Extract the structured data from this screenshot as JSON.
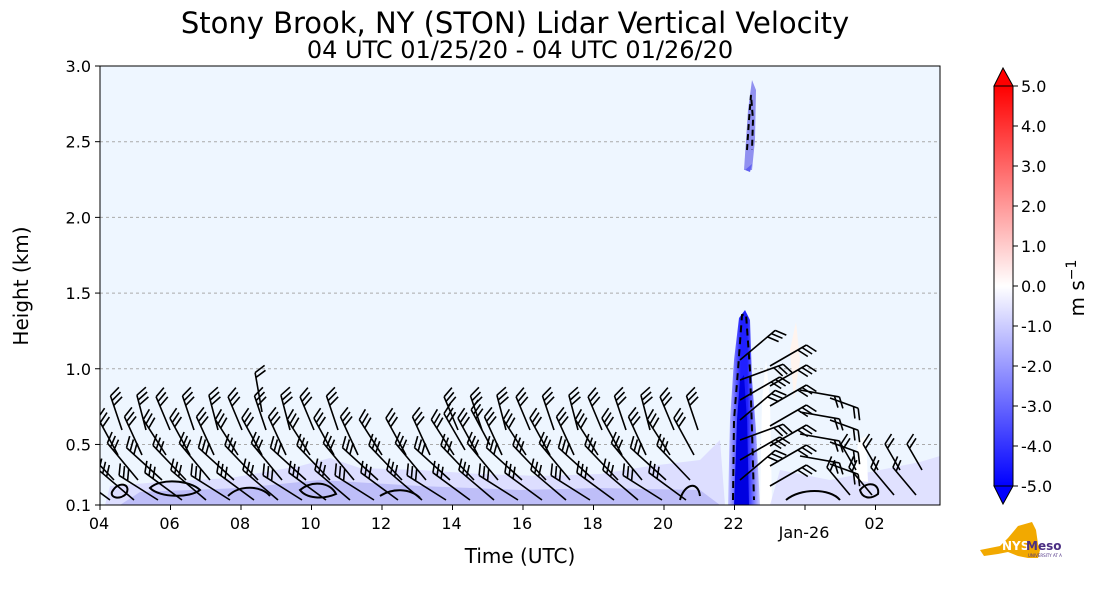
{
  "chart_data": {
    "type": "heatmap",
    "title": "Stony Brook, NY (STON) Lidar Vertical Velocity",
    "subtitle": "04 UTC 01/25/20 - 04 UTC 01/26/20",
    "xlabel": "Time (UTC)",
    "ylabel": "Height (km)",
    "x_ticks": [
      "04",
      "06",
      "08",
      "10",
      "12",
      "14",
      "16",
      "18",
      "20",
      "22",
      "Jan-26",
      "02"
    ],
    "y_ticks": [
      "3.0",
      "2.5",
      "2.0",
      "1.5",
      "1.0",
      "0.5",
      "0.1"
    ],
    "y_range_km": [
      0.1,
      3.0
    ],
    "grid": "dashed horizontal",
    "colorbar": {
      "label_base": "m s",
      "label_exp": "−1",
      "ticks": [
        "5.0",
        "4.0",
        "3.0",
        "2.0",
        "1.0",
        "0.0",
        "-1.0",
        "-2.0",
        "-3.0",
        "-4.0",
        "-5.0"
      ],
      "range": [
        -5,
        5
      ],
      "colors": {
        "min": "#0000ff",
        "mid": "#ffffff",
        "max": "#ff0000"
      }
    },
    "background_color": "#eef6ff",
    "features": [
      {
        "time_h": 22.3,
        "height_km": [
          0.1,
          1.35
        ],
        "velocity_ms": -4.5
      },
      {
        "time_h": 22.5,
        "height_km": [
          2.3,
          2.9
        ],
        "velocity_ms": -2.0
      },
      {
        "time_h_range": [
          4.5,
          27.5
        ],
        "height_km": [
          0.1,
          0.3
        ],
        "velocity_ms": -0.8
      }
    ]
  },
  "logo": {
    "text": "NYS Mesonet",
    "subtext": "UNIVERSITY AT ALBANY"
  }
}
